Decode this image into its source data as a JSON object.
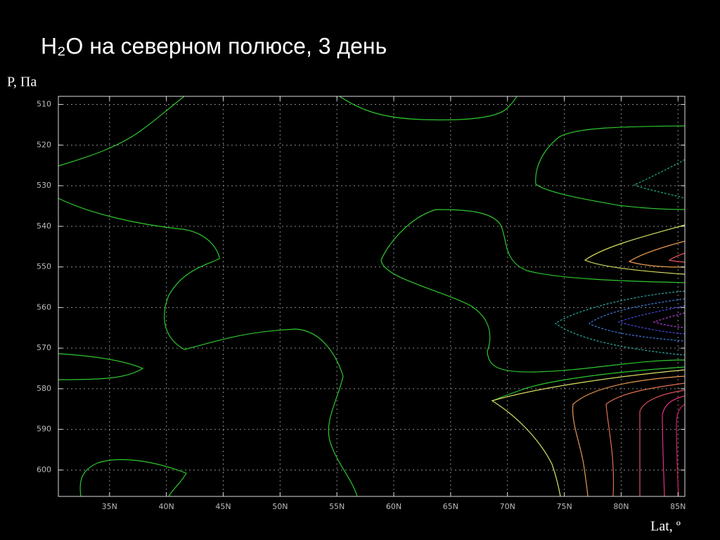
{
  "chart_data": {
    "type": "contour",
    "title": "H₂O на северном полюсе, 3 день",
    "y_label": "P, Па",
    "x_label": "Lat, º",
    "xlim": [
      30.5,
      85.6
    ],
    "ylim": [
      606.5,
      508
    ],
    "xticks": [
      {
        "value": 35,
        "label": "35N"
      },
      {
        "value": 40,
        "label": "40N"
      },
      {
        "value": 45,
        "label": "45N"
      },
      {
        "value": 50,
        "label": "50N"
      },
      {
        "value": 55,
        "label": "55N"
      },
      {
        "value": 60,
        "label": "60N"
      },
      {
        "value": 65,
        "label": "65N"
      },
      {
        "value": 70,
        "label": "70N"
      },
      {
        "value": 75,
        "label": "75N"
      },
      {
        "value": 80,
        "label": "80N"
      },
      {
        "value": 85,
        "label": "85N"
      }
    ],
    "yticks": [
      510,
      520,
      530,
      540,
      550,
      560,
      570,
      580,
      590,
      600
    ],
    "grid": true
  }
}
